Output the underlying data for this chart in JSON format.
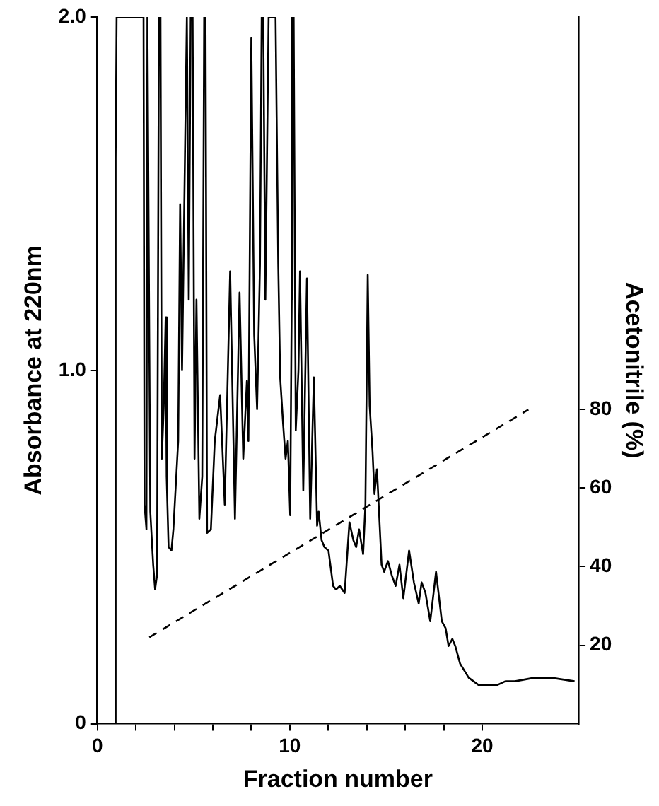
{
  "chart_data": {
    "type": "line",
    "xlabel": "Fraction number",
    "ylabel": "Absorbance at 220nm",
    "y2label": "Acetonitrile (%)",
    "xlim": [
      0,
      25
    ],
    "xticks": [
      0,
      {
        "value": 2,
        "label": null
      },
      {
        "value": 4,
        "label": null
      },
      {
        "value": 6,
        "label": null
      },
      {
        "value": 8,
        "label": null
      },
      10,
      {
        "value": 12,
        "label": null
      },
      {
        "value": 14,
        "label": null
      },
      {
        "value": 16,
        "label": null
      },
      {
        "value": 18,
        "label": null
      },
      20
    ],
    "ylim": [
      0,
      2.0
    ],
    "yticks": [
      0,
      {
        "value": 1,
        "label": "1.0"
      },
      {
        "value": 2,
        "label": "2.0"
      }
    ],
    "y2lim": [
      0,
      180
    ],
    "y2ticks": [
      20,
      40,
      60,
      80
    ],
    "marker": "none",
    "series": [
      {
        "color": "#000000",
        "line_style": "solid",
        "x": [
          0,
          0.9,
          0.95,
          1.0,
          2.4,
          2.45,
          2.55,
          2.6,
          2.65,
          2.75,
          2.9,
          3.0,
          3.1,
          3.2,
          3.28,
          3.35,
          3.45,
          3.55,
          3.6,
          3.7,
          3.85,
          3.95,
          4.2,
          4.3,
          4.4,
          4.55,
          4.65,
          4.75,
          4.85,
          4.95,
          5.05,
          5.15,
          5.3,
          5.45,
          5.55,
          5.62,
          5.7,
          5.9,
          6.1,
          6.38,
          6.62,
          6.9,
          7.15,
          7.39,
          7.58,
          7.77,
          7.85,
          8.0,
          8.15,
          8.3,
          8.45,
          8.54,
          8.62,
          8.73,
          8.9,
          9.26,
          9.4,
          9.5,
          9.65,
          9.78,
          9.9,
          10.02,
          10.1,
          10.12,
          10.2,
          10.31,
          10.45,
          10.53,
          10.7,
          10.89,
          11.06,
          11.25,
          11.42,
          11.5,
          11.65,
          11.8,
          12.01,
          12.25,
          12.4,
          12.6,
          12.85,
          13.1,
          13.3,
          13.45,
          13.6,
          13.81,
          13.93,
          14.05,
          14.15,
          14.3,
          14.4,
          14.53,
          14.77,
          14.9,
          15.1,
          15.3,
          15.5,
          15.7,
          15.9,
          16.2,
          16.45,
          16.7,
          16.85,
          17.05,
          17.3,
          17.6,
          17.9,
          18.1,
          18.25,
          18.45,
          18.6,
          18.85,
          19.3,
          19.8,
          20.8,
          21.2,
          21.7,
          22.7,
          23.6,
          24.8
        ],
        "values": [
          0,
          0,
          1.6,
          2.0,
          2.0,
          0.62,
          0.55,
          2.0,
          2.0,
          0.6,
          0.45,
          0.38,
          0.42,
          2.0,
          2.0,
          0.75,
          0.9,
          1.15,
          0.7,
          0.5,
          0.49,
          0.55,
          0.8,
          1.47,
          1.0,
          1.6,
          2.0,
          1.2,
          2.0,
          2.0,
          0.75,
          1.2,
          0.58,
          0.7,
          2.0,
          2.0,
          0.54,
          0.55,
          0.8,
          0.93,
          0.62,
          1.28,
          0.58,
          1.22,
          0.75,
          0.97,
          0.8,
          1.94,
          1.1,
          0.89,
          1.3,
          2.0,
          2.0,
          1.2,
          2.0,
          2.0,
          1.3,
          0.98,
          0.85,
          0.75,
          0.8,
          0.59,
          1.2,
          2.0,
          2.0,
          0.83,
          1.0,
          1.28,
          0.66,
          1.26,
          0.58,
          0.98,
          0.56,
          0.6,
          0.52,
          0.5,
          0.49,
          0.39,
          0.38,
          0.39,
          0.37,
          0.57,
          0.52,
          0.5,
          0.55,
          0.48,
          0.62,
          1.27,
          0.9,
          0.77,
          0.65,
          0.72,
          0.45,
          0.43,
          0.46,
          0.42,
          0.39,
          0.45,
          0.355,
          0.49,
          0.4,
          0.34,
          0.4,
          0.37,
          0.29,
          0.43,
          0.29,
          0.27,
          0.22,
          0.24,
          0.22,
          0.17,
          0.13,
          0.11,
          0.11,
          0.12,
          0.12,
          0.13,
          0.13,
          0.12
        ]
      },
      {
        "type": "line",
        "axis": "y2",
        "color": "#000000",
        "line_style": "dashed",
        "x": [
          2.7,
          22.4
        ],
        "values": [
          22,
          80
        ]
      }
    ]
  }
}
